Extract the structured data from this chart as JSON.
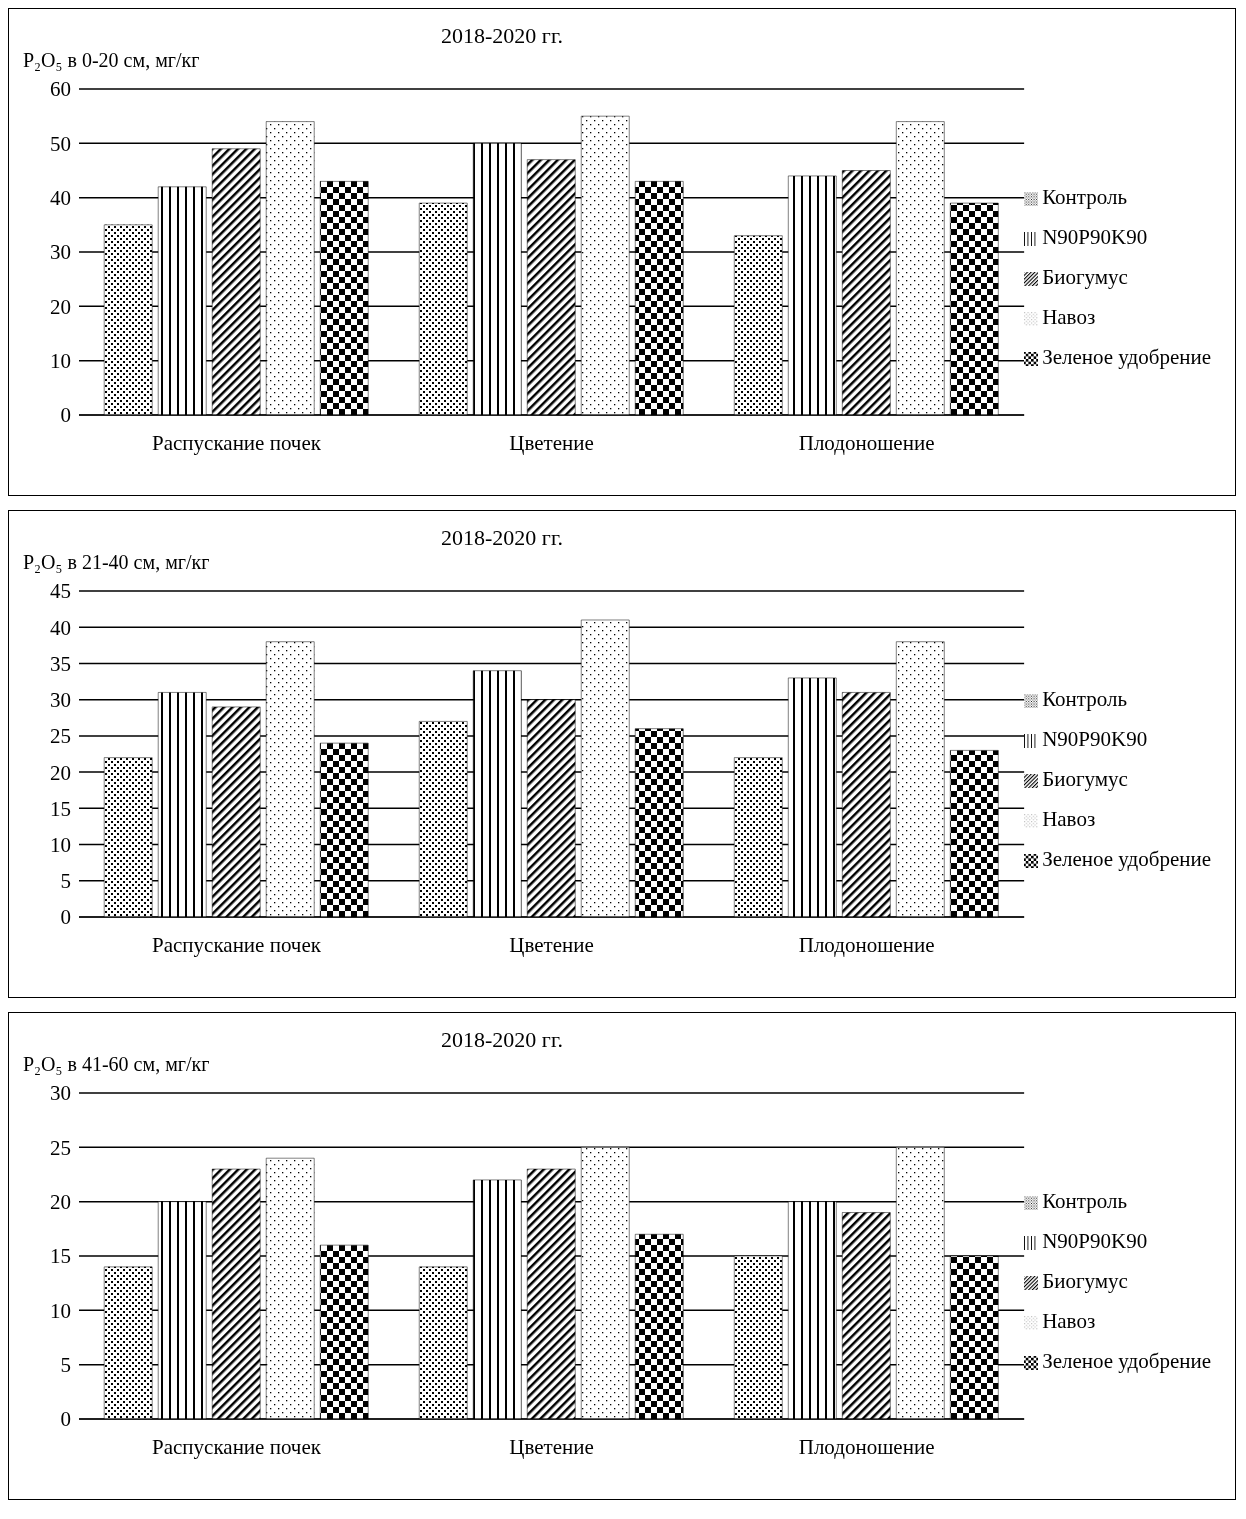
{
  "chart_data": [
    {
      "type": "bar",
      "title": "2018-2020 гг.",
      "ylabel": "P₂O₅ в 0-20 см, мг/кг",
      "categories": [
        "Распускание почек",
        "Цветение",
        "Плодоношение"
      ],
      "series": [
        {
          "name": "Контроль",
          "color": "#000000",
          "values": [
            35,
            39,
            33
          ]
        },
        {
          "name": "N90P90K90",
          "color": "#000000",
          "values": [
            42,
            50,
            44
          ]
        },
        {
          "name": "Биогумус",
          "color": "#000000",
          "values": [
            49,
            47,
            45
          ]
        },
        {
          "name": "Навоз",
          "color": "#000000",
          "values": [
            54,
            55,
            54
          ]
        },
        {
          "name": "Зеленое удобрение",
          "color": "#000000",
          "values": [
            43,
            43,
            39
          ]
        }
      ],
      "ylim": [
        0,
        60
      ],
      "yticks": [
        0,
        10,
        20,
        30,
        40,
        50,
        60
      ],
      "grid": "y",
      "legend": "right"
    },
    {
      "type": "bar",
      "title": "2018-2020 гг.",
      "ylabel": "P₂O₅ в 21-40 см,  мг/кг",
      "categories": [
        "Распускание почек",
        "Цветение",
        "Плодоношение"
      ],
      "series": [
        {
          "name": "Контроль",
          "color": "#000000",
          "values": [
            22,
            27,
            22
          ]
        },
        {
          "name": "N90P90K90",
          "color": "#000000",
          "values": [
            31,
            34,
            33
          ]
        },
        {
          "name": "Биогумус",
          "color": "#000000",
          "values": [
            29,
            30,
            31
          ]
        },
        {
          "name": "Навоз",
          "color": "#000000",
          "values": [
            38,
            41,
            38
          ]
        },
        {
          "name": "Зеленое удобрение",
          "color": "#000000",
          "values": [
            24,
            26,
            23
          ]
        }
      ],
      "ylim": [
        0,
        45
      ],
      "yticks": [
        0,
        5,
        10,
        15,
        20,
        25,
        30,
        35,
        40,
        45
      ],
      "grid": "y",
      "legend": "right"
    },
    {
      "type": "bar",
      "title": "2018-2020 гг.",
      "ylabel": "P₂O₅ в 41-60 см, мг/кг",
      "categories": [
        "Распускание почек",
        "Цветение",
        "Плодоношение"
      ],
      "series": [
        {
          "name": "Контроль",
          "color": "#000000",
          "values": [
            14,
            14,
            15
          ]
        },
        {
          "name": "N90P90K90",
          "color": "#000000",
          "values": [
            20,
            22,
            20
          ]
        },
        {
          "name": "Биогумус",
          "color": "#000000",
          "values": [
            23,
            23,
            19
          ]
        },
        {
          "name": "Навоз",
          "color": "#000000",
          "values": [
            24,
            25,
            25
          ]
        },
        {
          "name": "Зеленое удобрение",
          "color": "#000000",
          "values": [
            16,
            17,
            15
          ]
        }
      ],
      "ylim": [
        0,
        30
      ],
      "yticks": [
        0,
        5,
        10,
        15,
        20,
        25,
        30
      ],
      "grid": "y",
      "legend": "right"
    }
  ]
}
